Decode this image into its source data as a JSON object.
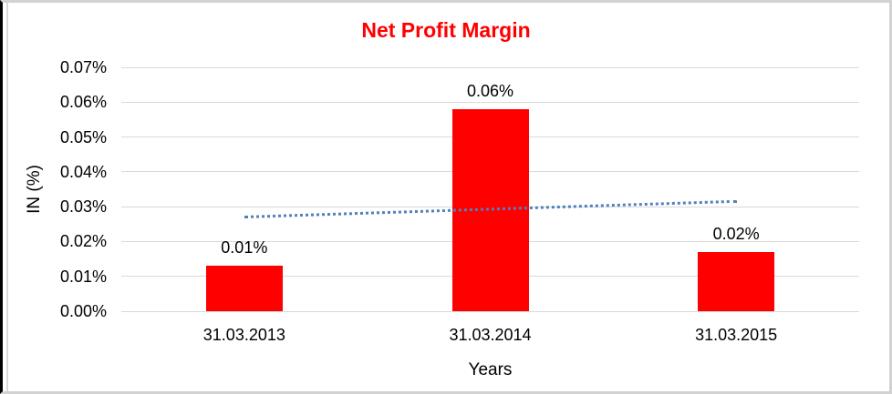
{
  "chart_data": {
    "type": "bar",
    "title": "Net Profit Margin",
    "title_color": "#FF0000",
    "xlabel": "Years",
    "ylabel": "IN (%)",
    "categories": [
      "31.03.2013",
      "31.03.2014",
      "31.03.2015"
    ],
    "values": [
      0.013,
      0.058,
      0.017
    ],
    "data_labels": [
      "0.01%",
      "0.06%",
      "0.02%"
    ],
    "bar_color": "#FF0000",
    "ylim": [
      0,
      0.07
    ],
    "yticks": [
      {
        "label": "0.00%",
        "value": 0.0
      },
      {
        "label": "0.01%",
        "value": 0.01
      },
      {
        "label": "0.02%",
        "value": 0.02
      },
      {
        "label": "0.03%",
        "value": 0.03
      },
      {
        "label": "0.04%",
        "value": 0.04
      },
      {
        "label": "0.05%",
        "value": 0.05
      },
      {
        "label": "0.06%",
        "value": 0.06
      },
      {
        "label": "0.07%",
        "value": 0.07
      }
    ],
    "grid": "horizontal",
    "gridline_color": "#D9D9D9",
    "legend": "none",
    "trendline": {
      "type": "linear",
      "style": "dotted",
      "color": "#4F81BD",
      "start_value": 0.0273,
      "end_value": 0.0318
    }
  }
}
